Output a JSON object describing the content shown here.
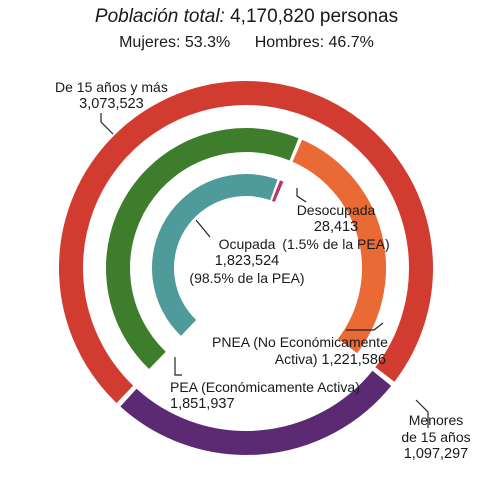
{
  "header": {
    "title_label": "Población total:",
    "title_value": "4,170,820 personas",
    "women": "Mujeres: 53.3%",
    "men": "Hombres: 46.7%"
  },
  "chart_data": {
    "type": "pie",
    "title": "Población total: 4,170,820 personas",
    "total": 4170820,
    "rings": [
      {
        "level": "outer",
        "segments": [
          {
            "name": "De 15 años y más",
            "value": 3073523,
            "value_label": "3,073,523",
            "color": "#d13b30"
          },
          {
            "name": "Menores de 15 años",
            "value": 1097297,
            "value_label": "1,097,297",
            "color": "#5c2a73"
          }
        ]
      },
      {
        "level": "middle",
        "segments": [
          {
            "name": "PEA (Económicamente Activa)",
            "value": 1851937,
            "value_label": "1,851,937",
            "color": "#3e7d2b"
          },
          {
            "name": "PNEA (No Económicamente Activa)",
            "value": 1221586,
            "value_label": "1,221,586",
            "color": "#e96a34"
          }
        ]
      },
      {
        "level": "inner",
        "segments": [
          {
            "name": "Ocupada",
            "value": 1823524,
            "value_label": "1,823,524",
            "share_label": "(98.5% de la PEA)",
            "color": "#4f9a9a"
          },
          {
            "name": "Desocupada",
            "value": 28413,
            "value_label": "28,413",
            "share_label": "(1.5% de la PEA)",
            "color": "#b8336a"
          }
        ]
      }
    ]
  },
  "labels": {
    "adults_name": "De 15 años y más",
    "adults_value": "3,073,523",
    "minors_line1": "Menores",
    "minors_line2": "de 15 años",
    "minors_value": "1,097,297",
    "pea_line1": "PEA (Económicamente Activa)",
    "pea_value": "1,851,937",
    "pnea_line1": "PNEA (No Económicamente",
    "pnea_line2a": "Activa)",
    "pnea_value": "1,221,586",
    "ocupada_name": "Ocupada",
    "ocupada_value": "1,823,524",
    "ocupada_share": "(98.5% de la PEA)",
    "desocupada_name": "Desocupada",
    "desocupada_value": "28,413",
    "desocupada_share": "(1.5% de la PEA)"
  }
}
